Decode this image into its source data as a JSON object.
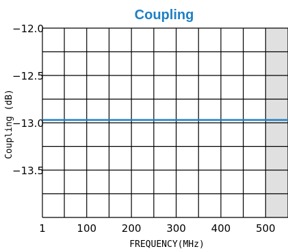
{
  "chart_data": {
    "type": "line",
    "title": "Coupling",
    "xlabel": "FREQUENCY(MHz)",
    "ylabel": "Coupling (dB)",
    "x_ticks": [
      {
        "value": 1,
        "label": "1"
      },
      {
        "value": 100,
        "label": "100"
      },
      {
        "value": 200,
        "label": "200"
      },
      {
        "value": 300,
        "label": "300"
      },
      {
        "value": 400,
        "label": "400"
      },
      {
        "value": 500,
        "label": "500"
      }
    ],
    "y_ticks": [
      {
        "value": -12.0,
        "label": "−12.0"
      },
      {
        "value": -12.5,
        "label": "−12.5"
      },
      {
        "value": -13.0,
        "label": "−13.0"
      },
      {
        "value": -13.5,
        "label": "−13.5"
      }
    ],
    "xlim": [
      1,
      550
    ],
    "ylim": [
      -14.0,
      -12.0
    ],
    "x_grid": [
      1,
      50,
      100,
      150,
      200,
      250,
      300,
      350,
      400,
      450,
      500,
      550
    ],
    "y_grid": [
      -12.0,
      -12.25,
      -12.5,
      -12.75,
      -13.0,
      -13.25,
      -13.5,
      -13.75,
      -14.0
    ],
    "grid": true,
    "shaded_region": {
      "x_start": 500,
      "x_end": 550,
      "color": "#e0e0e0"
    },
    "series": [
      {
        "color": "#1f7fc4",
        "x": [
          1,
          100,
          200,
          300,
          400,
          500,
          550
        ],
        "y": [
          -12.97,
          -12.97,
          -12.97,
          -12.97,
          -12.97,
          -12.97,
          -12.97
        ]
      }
    ]
  }
}
